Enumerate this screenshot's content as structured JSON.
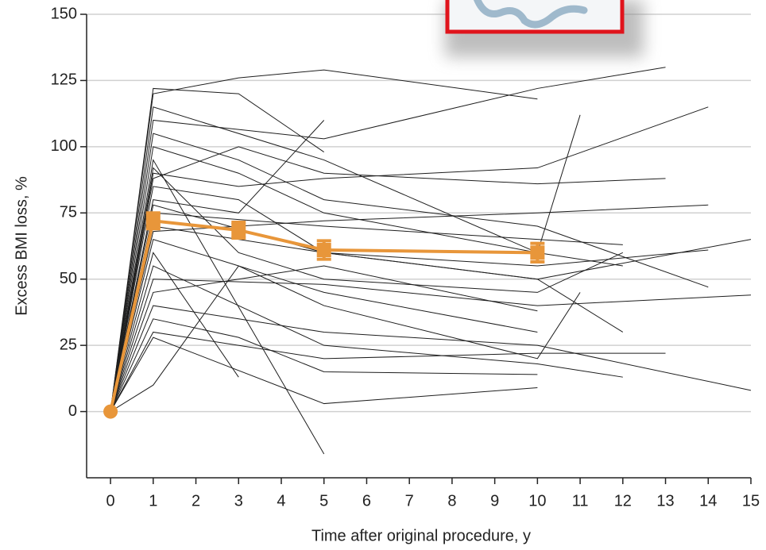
{
  "chart_data": {
    "type": "line",
    "xlabel": "Time after original procedure, y",
    "ylabel": "Excess BMI loss, %",
    "xlim": [
      -0.56,
      15
    ],
    "ylim": [
      -25,
      150
    ],
    "xticks": [
      0,
      1,
      2,
      3,
      4,
      5,
      6,
      7,
      8,
      9,
      10,
      11,
      12,
      13,
      14,
      15
    ],
    "yticks": [
      0,
      25,
      50,
      75,
      100,
      125,
      150
    ],
    "grid": true,
    "line_color": "#1e1e1e",
    "series": [
      {
        "x": [
          0,
          1,
          3,
          5
        ],
        "values": [
          0,
          122,
          120,
          98
        ]
      },
      {
        "x": [
          0,
          1,
          3,
          5,
          10
        ],
        "values": [
          0,
          120,
          126,
          129,
          118
        ]
      },
      {
        "x": [
          0,
          1,
          5,
          10,
          13
        ],
        "values": [
          0,
          110,
          103,
          122,
          130
        ]
      },
      {
        "x": [
          0,
          1,
          3,
          5,
          10,
          14
        ],
        "values": [
          0,
          105,
          95,
          80,
          70,
          47
        ]
      },
      {
        "x": [
          0,
          1,
          3
        ],
        "values": [
          0,
          60,
          13
        ]
      },
      {
        "x": [
          0,
          1,
          5
        ],
        "values": [
          0,
          95,
          -16
        ]
      },
      {
        "x": [
          0,
          1,
          3,
          5,
          10
        ],
        "values": [
          0,
          10,
          55,
          45,
          30
        ]
      },
      {
        "x": [
          0,
          1,
          3,
          5,
          10,
          15
        ],
        "values": [
          0,
          40,
          35,
          30,
          25,
          8
        ]
      },
      {
        "x": [
          0,
          1,
          5,
          10
        ],
        "values": [
          0,
          28,
          3,
          9
        ]
      },
      {
        "x": [
          0,
          1,
          3,
          5,
          10,
          12
        ],
        "values": [
          0,
          85,
          80,
          60,
          50,
          30
        ]
      },
      {
        "x": [
          0,
          1,
          5,
          10,
          12
        ],
        "values": [
          0,
          75,
          70,
          65,
          63
        ]
      },
      {
        "x": [
          0,
          1,
          3,
          5,
          10,
          14
        ],
        "values": [
          0,
          90,
          85,
          88,
          92,
          115
        ]
      },
      {
        "x": [
          0,
          1,
          3,
          5,
          10,
          11
        ],
        "values": [
          0,
          65,
          55,
          40,
          20,
          45
        ]
      },
      {
        "x": [
          0,
          1,
          5,
          10,
          15
        ],
        "values": [
          0,
          50,
          48,
          40,
          44
        ]
      },
      {
        "x": [
          0,
          1,
          3,
          5,
          10,
          12
        ],
        "values": [
          0,
          100,
          90,
          75,
          60,
          55
        ]
      },
      {
        "x": [
          0,
          1,
          3,
          5
        ],
        "values": [
          0,
          80,
          75,
          110
        ]
      },
      {
        "x": [
          0,
          1,
          5,
          10,
          13
        ],
        "values": [
          0,
          30,
          20,
          22,
          22
        ]
      },
      {
        "x": [
          0,
          1,
          3,
          5,
          10,
          14
        ],
        "values": [
          0,
          70,
          65,
          60,
          55,
          61
        ]
      },
      {
        "x": [
          0,
          1,
          3,
          5,
          10
        ],
        "values": [
          0,
          45,
          50,
          55,
          38
        ]
      },
      {
        "x": [
          0,
          1,
          5,
          10,
          11
        ],
        "values": [
          0,
          115,
          95,
          60,
          112
        ]
      },
      {
        "x": [
          0,
          1,
          3,
          5,
          10,
          12
        ],
        "values": [
          0,
          55,
          40,
          25,
          18,
          13
        ]
      },
      {
        "x": [
          0,
          1,
          3,
          5,
          10,
          13
        ],
        "values": [
          0,
          88,
          100,
          90,
          86,
          88
        ]
      },
      {
        "x": [
          0,
          1,
          5,
          10,
          15
        ],
        "values": [
          0,
          78,
          60,
          50,
          65
        ]
      },
      {
        "x": [
          0,
          1,
          3,
          5,
          10
        ],
        "values": [
          0,
          35,
          28,
          15,
          14
        ]
      },
      {
        "x": [
          0,
          1,
          3,
          5,
          10,
          14
        ],
        "values": [
          0,
          68,
          70,
          72,
          75,
          78
        ]
      },
      {
        "x": [
          0,
          1,
          3,
          5,
          10,
          12
        ],
        "values": [
          0,
          92,
          60,
          50,
          45,
          60
        ]
      }
    ],
    "mean_series": {
      "color": "#e8963a",
      "x": [
        0,
        1,
        3,
        5,
        10
      ],
      "values": [
        0,
        72,
        68.5,
        61,
        60
      ],
      "errors": [
        0,
        3,
        3,
        3.5,
        3.5
      ]
    }
  }
}
